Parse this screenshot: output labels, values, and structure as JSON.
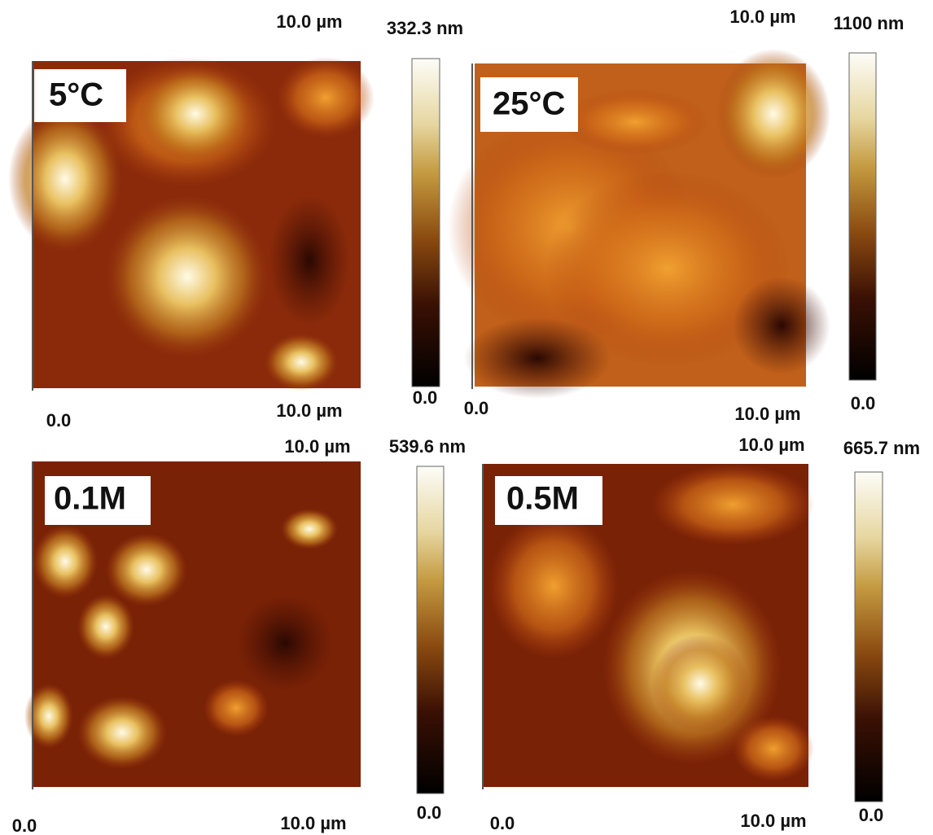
{
  "panels": [
    {
      "label": "5°C",
      "x_top": "10.0 µm",
      "x_bottom": "10.0 µm",
      "origin": "0.0",
      "scale_max": "332.3 nm",
      "scale_min": "0.0"
    },
    {
      "label": "25°C",
      "x_top": "10.0 µm",
      "x_bottom": "10.0 µm",
      "origin": "0.0",
      "scale_max": "1100 nm",
      "scale_min": "0.0"
    },
    {
      "label": "0.1M",
      "x_top": "10.0 µm",
      "x_bottom": "10.0 µm",
      "origin": "0.0",
      "scale_max": "539.6 nm",
      "scale_min": "0.0"
    },
    {
      "label": "0.5M",
      "x_top": "10.0 µm",
      "x_bottom": "10.0 µm",
      "origin": "0.0",
      "scale_max": "665.7 nm",
      "scale_min": "0.0"
    }
  ]
}
